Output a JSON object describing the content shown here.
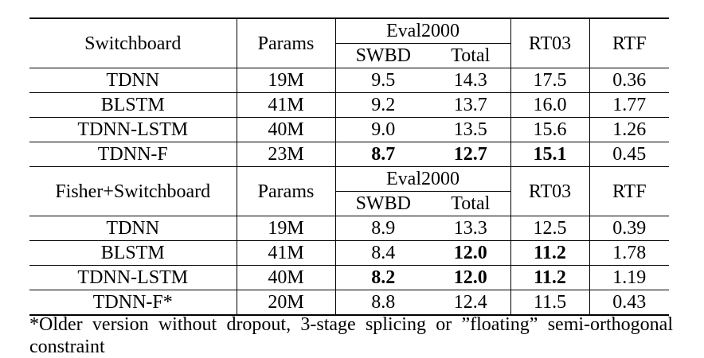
{
  "section1": {
    "header": {
      "corpus": "Switchboard",
      "params": "Params",
      "eval": "Eval2000",
      "swbd": "SWBD",
      "total": "Total",
      "rt03": "RT03",
      "rtf": "RTF"
    },
    "rows": [
      {
        "model": "TDNN",
        "params": "19M",
        "swbd": "9.5",
        "total": "14.3",
        "rt03": "17.5",
        "rtf": "0.36"
      },
      {
        "model": "BLSTM",
        "params": "41M",
        "swbd": "9.2",
        "total": "13.7",
        "rt03": "16.0",
        "rtf": "1.77"
      },
      {
        "model": "TDNN-LSTM",
        "params": "40M",
        "swbd": "9.0",
        "total": "13.5",
        "rt03": "15.6",
        "rtf": "1.26"
      },
      {
        "model": "TDNN-F",
        "params": "23M",
        "swbd": "8.7",
        "total": "12.7",
        "rt03": "15.1",
        "rtf": "0.45"
      }
    ]
  },
  "section2": {
    "header": {
      "corpus": "Fisher+Switchboard",
      "params": "Params",
      "eval": "Eval2000",
      "swbd": "SWBD",
      "total": "Total",
      "rt03": "RT03",
      "rtf": "RTF"
    },
    "rows": [
      {
        "model": "TDNN",
        "params": "19M",
        "swbd": "8.9",
        "total": "13.3",
        "rt03": "12.5",
        "rtf": "0.39"
      },
      {
        "model": "BLSTM",
        "params": "41M",
        "swbd": "8.4",
        "total": "12.0",
        "rt03": "11.2",
        "rtf": "1.78"
      },
      {
        "model": "TDNN-LSTM",
        "params": "40M",
        "swbd": "8.2",
        "total": "12.0",
        "rt03": "11.2",
        "rtf": "1.19"
      },
      {
        "model": "TDNN-F*",
        "params": "20M",
        "swbd": "8.8",
        "total": "12.4",
        "rt03": "11.5",
        "rtf": "0.43"
      }
    ]
  },
  "bold_cells": [
    "section1.rows.3.swbd",
    "section1.rows.3.total",
    "section1.rows.3.rt03",
    "section2.rows.1.total",
    "section2.rows.1.rt03",
    "section2.rows.2.swbd",
    "section2.rows.2.total",
    "section2.rows.2.rt03"
  ],
  "footnote": "*Older version without dropout, 3-stage splicing or ”floating” semi-orthogonal constraint"
}
